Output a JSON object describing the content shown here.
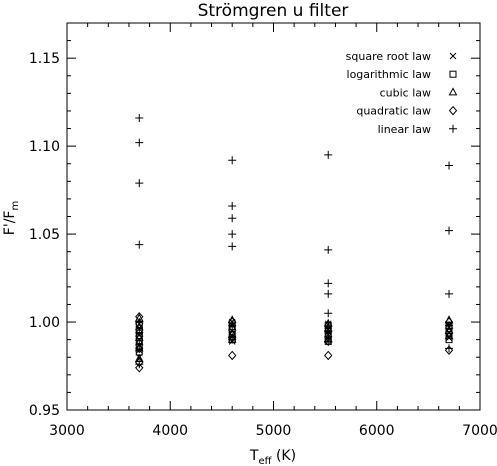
{
  "chart_data": {
    "type": "scatter",
    "title": "Strömgren u filter",
    "xlabel_main": "T",
    "xlabel_sub": "eff",
    "xlabel_tail": " (K)",
    "ylabel_main": "F'/F",
    "ylabel_sub": "m",
    "xlim": [
      3000,
      7000
    ],
    "ylim": [
      0.95,
      1.17
    ],
    "xticks": [
      3000,
      4000,
      5000,
      6000,
      7000
    ],
    "xtick_labels": [
      "3000",
      "4000",
      "5000",
      "6000",
      "7000"
    ],
    "yticks": [
      0.95,
      1.0,
      1.05,
      1.1,
      1.15
    ],
    "ytick_labels": [
      "0.95",
      "1.00",
      "1.05",
      "1.10",
      "1.15"
    ],
    "grid": false,
    "legend_position": "top-right",
    "series": [
      {
        "name": "square root law",
        "marker": "x",
        "x": [
          3700,
          3700,
          3700,
          3700,
          3700,
          3700,
          3700,
          4600,
          4600,
          4600,
          4600,
          4600,
          5530,
          5530,
          5530,
          5530,
          6700,
          6700,
          6700,
          6700
        ],
        "y": [
          0.999,
          0.996,
          0.993,
          0.99,
          0.987,
          0.984,
          0.98,
          1.0,
          0.998,
          0.995,
          0.992,
          0.989,
          0.999,
          0.996,
          0.993,
          0.99,
          0.999,
          0.997,
          0.994,
          0.991
        ]
      },
      {
        "name": "logarithmic law",
        "marker": "square",
        "x": [
          3700,
          3700,
          3700,
          3700,
          3700,
          3700,
          4600,
          4600,
          4600,
          4600,
          5530,
          5530,
          5530,
          5530,
          6700,
          6700,
          6700,
          6700
        ],
        "y": [
          0.998,
          0.995,
          0.992,
          0.989,
          0.986,
          0.983,
          0.999,
          0.996,
          0.993,
          0.99,
          0.998,
          0.995,
          0.992,
          0.989,
          0.998,
          0.996,
          0.993,
          0.99
        ]
      },
      {
        "name": "cubic law",
        "marker": "triangle",
        "x": [
          3700,
          3700,
          3700,
          3700,
          3700,
          4600,
          4600,
          4600,
          4600,
          5530,
          5530,
          5530,
          5530,
          6700,
          6700,
          6700,
          6700
        ],
        "y": [
          1.002,
          0.997,
          0.991,
          0.985,
          0.979,
          1.001,
          0.997,
          0.993,
          0.99,
          0.999,
          0.996,
          0.993,
          0.99,
          1.001,
          0.998,
          0.995,
          0.992
        ]
      },
      {
        "name": "quadratic law",
        "marker": "diamond",
        "x": [
          3700,
          3700,
          3700,
          3700,
          3700,
          3700,
          4600,
          4600,
          4600,
          5530,
          5530,
          5530,
          6700,
          6700,
          6700
        ],
        "y": [
          1.003,
          0.999,
          0.992,
          0.985,
          0.977,
          0.974,
          1.0,
          0.991,
          0.981,
          0.998,
          0.989,
          0.981,
          1.0,
          0.994,
          0.984
        ]
      },
      {
        "name": "linear law",
        "marker": "plus",
        "x": [
          3700,
          3700,
          3700,
          3700,
          3700,
          3700,
          3700,
          3700,
          4600,
          4600,
          4600,
          4600,
          4600,
          4600,
          4600,
          5530,
          5530,
          5530,
          5530,
          5530,
          5530,
          5530,
          6700,
          6700,
          6700,
          6700,
          6700
        ],
        "y": [
          1.116,
          1.102,
          1.079,
          1.044,
          1.0,
          0.994,
          0.987,
          0.976,
          1.092,
          1.066,
          1.059,
          1.05,
          1.043,
          0.998,
          0.99,
          1.095,
          1.041,
          1.022,
          1.016,
          1.005,
          0.995,
          0.989,
          1.089,
          1.052,
          1.016,
          0.998,
          0.985
        ]
      }
    ]
  }
}
